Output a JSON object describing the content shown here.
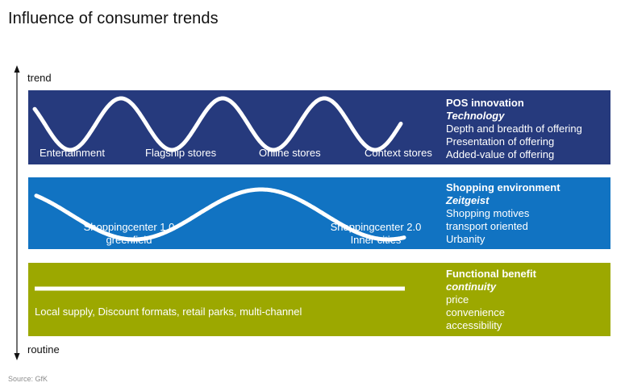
{
  "title": "Influence of consumer trends",
  "axis": {
    "top_label": "trend",
    "bottom_label": "routine"
  },
  "colors": {
    "band1": "#263a7d",
    "band2": "#1173c2",
    "band3": "#9ca800",
    "wave": "#ffffff"
  },
  "bands": [
    {
      "wave": "sine-high-frequency",
      "labels": [
        "Entertainment",
        "Flagship stores",
        "Online stores",
        "Context stores"
      ],
      "side": {
        "heading": "POS innovation",
        "subheading": "Technology",
        "items": [
          "Depth and breadth of offering",
          "Presentation of offering",
          "Added-value of offering"
        ]
      }
    },
    {
      "wave": "sine-low-frequency",
      "labels": [
        {
          "line1": "Shoppingcenter 1.0",
          "line2": "greenfield"
        },
        {
          "line1": "Shoppingcenter 2.0",
          "line2": "Inner cities"
        }
      ],
      "side": {
        "heading": "Shopping environment",
        "subheading": "Zeitgeist",
        "items": [
          "Shopping motives",
          "transport oriented",
          "Urbanity"
        ]
      }
    },
    {
      "wave": "flat-line",
      "labels": [
        "Local supply, Discount formats, retail parks, multi-channel"
      ],
      "side": {
        "heading": "Functional benefit",
        "subheading": "continuity",
        "items": [
          "price",
          "convenience",
          "accessibility"
        ]
      }
    }
  ],
  "source": "Source: GfK"
}
